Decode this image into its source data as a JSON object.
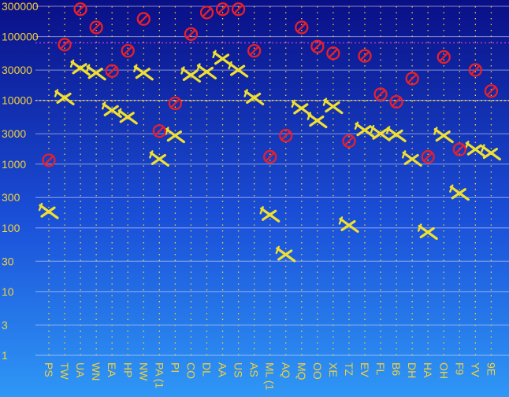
{
  "chart_data": {
    "type": "scatter",
    "y_scale": "log",
    "ylim": [
      1,
      300000
    ],
    "y_ticks": [
      1,
      3,
      10,
      30,
      100,
      300,
      1000,
      3000,
      10000,
      30000,
      100000,
      300000
    ],
    "y_tick_labels": [
      "1",
      "3",
      "10",
      "30",
      "100",
      "300",
      "1000",
      "3000",
      "10000",
      "30000",
      "100000",
      "300000"
    ],
    "reference_lines": [
      80000,
      10000
    ],
    "categories": [
      "PS",
      "TW",
      "UA",
      "WN",
      "EA",
      "HP",
      "NW",
      "PA (1",
      "PI",
      "CO",
      "DL",
      "AA",
      "US",
      "AS",
      "ML (1",
      "AQ",
      "MQ",
      "OO",
      "XE",
      "TZ",
      "EV",
      "FL",
      "B6",
      "DH",
      "HA",
      "OH",
      "F9",
      "YV",
      "9E"
    ],
    "series": [
      {
        "marker": "plane-icon",
        "color": "#f0e030",
        "values": [
          180,
          11000,
          32000,
          27000,
          7000,
          5500,
          27000,
          1200,
          2800,
          25000,
          28000,
          45000,
          30000,
          11000,
          160,
          38,
          7500,
          4800,
          8000,
          110,
          3400,
          3000,
          2900,
          1200,
          85,
          2800,
          350,
          1700,
          1500
        ]
      },
      {
        "marker": "no-symbol-icon",
        "color": "#e8202a",
        "values": [
          1150,
          75000,
          270000,
          140000,
          29000,
          60000,
          190000,
          3300,
          9000,
          110000,
          240000,
          270000,
          270000,
          60000,
          1300,
          2800,
          140000,
          70000,
          55000,
          2300,
          50000,
          12500,
          9500,
          22000,
          1300,
          48000,
          1700,
          30000,
          14000
        ]
      }
    ]
  }
}
